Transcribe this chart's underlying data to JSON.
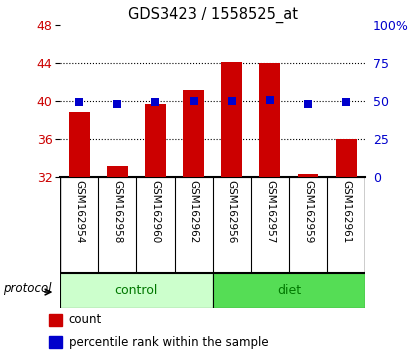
{
  "title": "GDS3423 / 1558525_at",
  "samples": [
    "GSM162954",
    "GSM162958",
    "GSM162960",
    "GSM162962",
    "GSM162956",
    "GSM162957",
    "GSM162959",
    "GSM162961"
  ],
  "groups": [
    "control",
    "control",
    "control",
    "control",
    "diet",
    "diet",
    "diet",
    "diet"
  ],
  "count_values": [
    38.8,
    33.2,
    39.7,
    41.1,
    44.1,
    44.0,
    32.3,
    36.0
  ],
  "percentile_values": [
    49,
    48,
    49,
    50,
    50,
    50.3,
    48,
    49
  ],
  "bar_bottom": 32,
  "ylim_left": [
    32,
    48
  ],
  "ylim_right": [
    0,
    100
  ],
  "yticks_left": [
    32,
    36,
    40,
    44,
    48
  ],
  "yticks_right": [
    0,
    25,
    50,
    75,
    100
  ],
  "ytick_labels_right": [
    "0",
    "25",
    "50",
    "75",
    "100%"
  ],
  "bar_color": "#cc0000",
  "dot_color": "#0000cc",
  "control_color": "#ccffcc",
  "diet_color": "#55dd55",
  "sample_bg_color": "#cccccc",
  "group_label_color": "#007700",
  "tick_label_color_left": "#cc0000",
  "tick_label_color_right": "#0000cc",
  "grid_color": "#000000",
  "bar_width": 0.55,
  "dot_size": 28,
  "protocol_label": "protocol",
  "control_label": "control",
  "diet_label": "diet",
  "legend_count": "count",
  "legend_percentile": "percentile rank within the sample"
}
